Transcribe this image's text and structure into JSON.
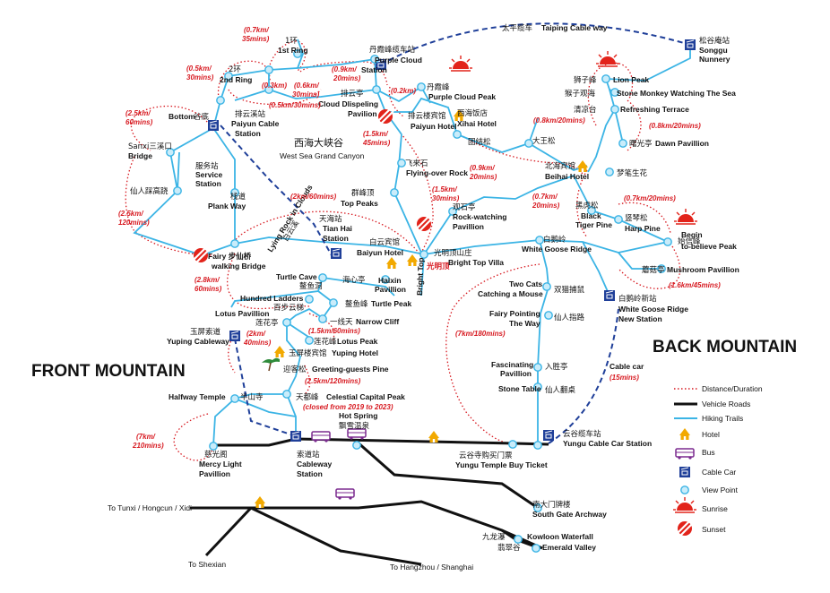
{
  "colors": {
    "trail": "#3bb4e5",
    "road": "#111111",
    "cablecar": "#1f3f99",
    "distance": "#d71920",
    "sun": "#e2231a",
    "hotel": "#f2a900",
    "bus": "#7b2a8f"
  },
  "regions": {
    "front": "FRONT MOUNTAIN",
    "back": "BACK MOUNTAIN"
  },
  "canyon": {
    "cn": "西海大峡谷",
    "en": "West Sea Grand Canyon"
  },
  "cableways": {
    "taiping": {
      "cn": "太平缆车",
      "en": "Taiping Cable way"
    },
    "cablecar": {
      "en": "Cable car",
      "time": "(15mins)"
    },
    "lying_rock": {
      "en": "Lying Rock in Clouds",
      "cn": "白云溪"
    },
    "bright_top": {
      "en": "Bright Top",
      "cn": "光明顶"
    }
  },
  "places": {
    "songgu": {
      "cn": "松谷庵站",
      "en1": "Songgu",
      "en2": "Nunnery"
    },
    "lion_peak": {
      "cn": "狮子峰",
      "en": "Lion Peak"
    },
    "stone_monkey": {
      "cn": "猴子观海",
      "en": "Stone Monkey Watching The Sea"
    },
    "refreshing": {
      "cn": "清凉台",
      "en": "Refreshing Terrace"
    },
    "dawn": {
      "cn": "曙光亭",
      "en": "Dawn Pavillion"
    },
    "mengbi": {
      "cn": "梦笔生花"
    },
    "purple_station": {
      "cn": "丹霞峰缆车站",
      "en1": "Purple Cloud",
      "en2": "Station"
    },
    "purple_peak": {
      "cn": "丹霞峰",
      "en": "Purple Cloud Peak"
    },
    "ring1": {
      "cn": "1环",
      "en": "1st Ring"
    },
    "ring2": {
      "cn": "2环",
      "en": "2nd Ring"
    },
    "paiyun_pav": {
      "cn": "排云亭",
      "en1": "Cloud Dlispeling",
      "en2": "Pavilion"
    },
    "paiyun_hotel": {
      "cn": "排云楼宾馆",
      "en": "Paiyun Hotel"
    },
    "xihai": {
      "cn": "西海饭店",
      "en": "Xihai Hotel"
    },
    "tuanjie": {
      "cn": "团结松"
    },
    "dawangsong": {
      "cn": "大王松"
    },
    "bottom": {
      "cn": "谷底",
      "en": "Bottom"
    },
    "paiyun_cable": {
      "cn": "排云溪站",
      "en1": "Paiyun Cable",
      "en2": "Station"
    },
    "sanxi": {
      "cn": "Sanxi三溪口",
      "en": "Bridge"
    },
    "service": {
      "cn": "服务站",
      "en1": "Service",
      "en2": "Station"
    },
    "immortal": {
      "cn": "仙人踩高跷"
    },
    "plank": {
      "cn": "栈道",
      "en": "Plank Way"
    },
    "flyover": {
      "cn": "飞来石",
      "en": "Flying-over Rock"
    },
    "beihai": {
      "cn": "北海宾馆",
      "en": "Beihai Hotel"
    },
    "toppeaks": {
      "cn": "群峰顶",
      "en": "Top Peaks"
    },
    "tianhai": {
      "cn": "天海站",
      "en1": "Tian Hai",
      "en2": "Station"
    },
    "guanshi": {
      "cn": "观石亭",
      "en1": "Rock-watching",
      "en2": "Pavillion"
    },
    "black_tiger": {
      "cn": "黑虎松",
      "en1": "Black",
      "en2": "Tiger Pine"
    },
    "harp": {
      "cn": "竖琴松",
      "en": "Harp Pine"
    },
    "begin": {
      "cn": "始信峰",
      "en1": "Begin",
      "en2": "to-believe Peak"
    },
    "baiyun": {
      "cn": "白云宾馆",
      "en": "Baiyun Hotel"
    },
    "bright_villa": {
      "cn": "光明顶山庄",
      "en": "Bright Top Villa"
    },
    "goose_ridge": {
      "cn": "白鹅岭",
      "en": "White Goose Ridge"
    },
    "mushroom": {
      "cn": "蘑菇亭",
      "en": "Mushroom Pavillion"
    },
    "fairy_bridge": {
      "en1": "Fairy 步仙桥",
      "en2": "walking Bridge"
    },
    "turtle_cave": {
      "en": "Turtle Cave",
      "cn": "鳌鱼洞"
    },
    "haixin": {
      "cn": "海心亭",
      "en1": "Haixin",
      "en2": "Pavillion"
    },
    "hundred": {
      "en": "Hundred Ladders",
      "cn": "百步云梯"
    },
    "turtle_peak": {
      "cn": "鳌鱼峰",
      "en": "Turtle Peak"
    },
    "two_cats": {
      "en1": "Two Cats",
      "en2": "Catching a Mouse",
      "cn": "双猫捕鼠"
    },
    "goose_new": {
      "cn": "白鹅岭新站",
      "en1": "White Goose Ridge",
      "en2": "New Station"
    },
    "lotus_pav": {
      "en": "Lotus Pavillion",
      "cn": "莲花亭"
    },
    "narrow": {
      "cn": "一线天",
      "en": "Narrow Cliff"
    },
    "fairy_way": {
      "en1": "Fairy Pointing",
      "en2": "The Way",
      "cn": "仙人指路"
    },
    "yuping_cable": {
      "cn": "玉屏索道",
      "en": "Yuping Cableway"
    },
    "lotus_peak": {
      "cn": "莲花峰",
      "en": "Lotus Peak"
    },
    "yuping_hotel": {
      "cn": "玉屏楼宾馆",
      "en": "Yuping Hotel"
    },
    "greeting": {
      "cn": "迎客松",
      "en": "Greeting-guests Pine"
    },
    "fascinating": {
      "en1": "Fascinating",
      "en2": "Pavillion",
      "cn": "入胜亭"
    },
    "stone_table": {
      "en": "Stone Table",
      "cn": "仙人翻桌"
    },
    "halfway": {
      "en": "Halfway Temple",
      "cn": "半山寺"
    },
    "celestial": {
      "cn": "天都峰",
      "en": "Celestial Capital Peak",
      "note": "(closed from 2019 to 2023)"
    },
    "hotspring": {
      "en": "Hot Spring",
      "cn": "飘雪温泉"
    },
    "yungu_station": {
      "cn": "云谷缆车站",
      "en": "Yungu Cable Car Station"
    },
    "yungu_temple": {
      "cn": "云谷寺购买门票",
      "en": "Yungu Temple Buy Ticket"
    },
    "mercy": {
      "cn": "慈光阁",
      "en1": "Mercy Light",
      "en2": "Pavillion"
    },
    "ciguang": {
      "cn": "索道站",
      "en1": "Cableway",
      "en2": "Station"
    },
    "south_gate": {
      "cn": "南大门牌楼",
      "en": "South Gate Archway"
    },
    "kowloon": {
      "cn": "九龙瀑",
      "en": "Kowloon Waterfall"
    },
    "emerald": {
      "cn": "翡翠谷",
      "en": "Emerald Valley"
    },
    "tunxi": {
      "en": "To Tunxi / Hongcun / Xidi"
    },
    "shexian": {
      "en": "To Shexian"
    },
    "hangzhou": {
      "en": "To Hangzhou / Shanghai"
    }
  },
  "distances": {
    "d1": "(0.7km/",
    "d1b": "35mins)",
    "d2": "(0.6km/",
    "d2b": "30mins)",
    "d3": "(0.5km/",
    "d3b": "30mins)",
    "d4": "(0.3km)",
    "d5": "(0.5km/30mins)",
    "d6": "(0.9km/",
    "d6b": "20mins)",
    "d7": "(0.2km)",
    "d8": "(2.5km/",
    "d8b": "60mins)",
    "d9": "(1.5km/",
    "d9b": "45mins)",
    "d10": "(0.8km/20mins)",
    "d11": "(0.8km/20mins)",
    "d12": "(0.9km/",
    "d12b": "20mins)",
    "d13": "(2km/60mins)",
    "d14": "(1.5km/",
    "d14b": "30mins)",
    "d15": "(0.7km/",
    "d15b": "20mins)",
    "d16": "(0.7km/20mins)",
    "d17": "(2.5km/",
    "d17b": "120mins)",
    "d18": "(1.6km/45mins)",
    "d19": "(2.8km/",
    "d19b": "60mins)",
    "d20": "(1.5km/60mins)",
    "d21": "(7km/180mins)",
    "d22": "(2km/",
    "d22b": "40mins)",
    "d23": "(2.5km/120mins)",
    "d24": "(7km/",
    "d24b": "210mins)"
  },
  "legend": {
    "distance": "Distance/Duration",
    "roads": "Vehicle Roads",
    "trails": "Hiking Trails",
    "hotel": "Hotel",
    "bus": "Bus",
    "cablecar": "Cable Car",
    "viewpoint": "View Point",
    "sunrise": "Sunrise",
    "sunset": "Sunset"
  }
}
